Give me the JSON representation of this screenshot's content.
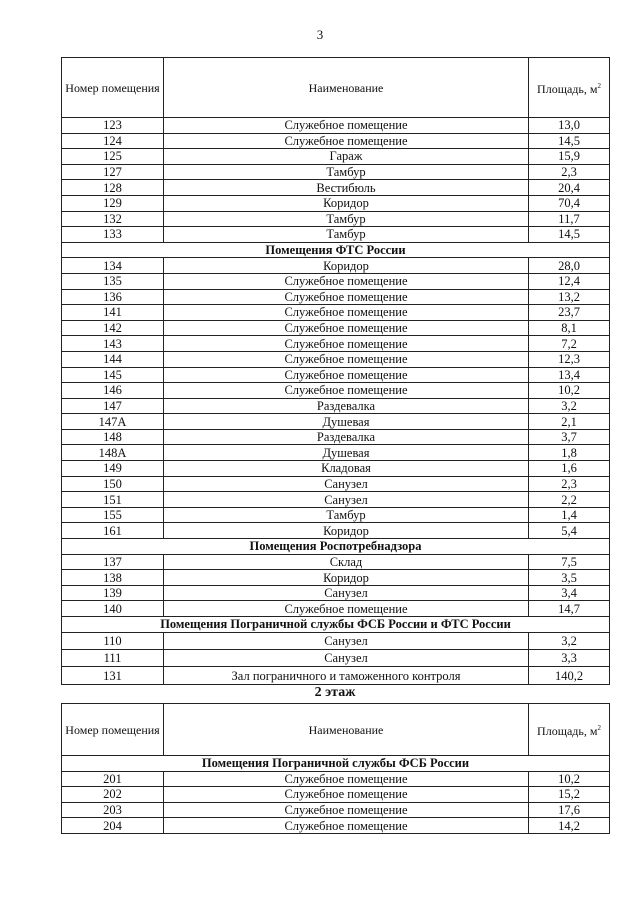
{
  "page_number": "3",
  "header": {
    "number": "Номер помещения",
    "name": "Наименование",
    "area": "Площадь, м",
    "area_sup": "2"
  },
  "table1": [
    {
      "n": "123",
      "name": "Служебное помещение",
      "a": "13,0"
    },
    {
      "n": "124",
      "name": "Служебное помещение",
      "a": "14,5"
    },
    {
      "n": "125",
      "name": "Гараж",
      "a": "15,9"
    },
    {
      "n": "127",
      "name": "Тамбур",
      "a": "2,3"
    },
    {
      "n": "128",
      "name": "Вестибюль",
      "a": "20,4"
    },
    {
      "n": "129",
      "name": "Коридор",
      "a": "70,4"
    },
    {
      "n": "132",
      "name": "Тамбур",
      "a": "11,7"
    },
    {
      "n": "133",
      "name": "Тамбур",
      "a": "14,5"
    },
    {
      "section": "Помещения ФТС России"
    },
    {
      "n": "134",
      "name": "Коридор",
      "a": "28,0"
    },
    {
      "n": "135",
      "name": "Служебное помещение",
      "a": "12,4"
    },
    {
      "n": "136",
      "name": "Служебное помещение",
      "a": "13,2"
    },
    {
      "n": "141",
      "name": "Служебное помещение",
      "a": "23,7"
    },
    {
      "n": "142",
      "name": "Служебное помещение",
      "a": "8,1"
    },
    {
      "n": "143",
      "name": "Служебное помещение",
      "a": "7,2"
    },
    {
      "n": "144",
      "name": "Служебное помещение",
      "a": "12,3"
    },
    {
      "n": "145",
      "name": "Служебное помещение",
      "a": "13,4"
    },
    {
      "n": "146",
      "name": "Служебное помещение",
      "a": "10,2"
    },
    {
      "n": "147",
      "name": "Раздевалка",
      "a": "3,2"
    },
    {
      "n": "147А",
      "name": "Душевая",
      "a": "2,1"
    },
    {
      "n": "148",
      "name": "Раздевалка",
      "a": "3,7"
    },
    {
      "n": "148А",
      "name": "Душевая",
      "a": "1,8"
    },
    {
      "n": "149",
      "name": "Кладовая",
      "a": "1,6"
    },
    {
      "n": "150",
      "name": "Санузел",
      "a": "2,3"
    },
    {
      "n": "151",
      "name": "Санузел",
      "a": "2,2"
    },
    {
      "n": "155",
      "name": "Тамбур",
      "a": "1,4"
    },
    {
      "n": "161",
      "name": "Коридор",
      "a": "5,4"
    },
    {
      "section": "Помещения Роспотребнадзора"
    },
    {
      "n": "137",
      "name": "Склад",
      "a": "7,5"
    },
    {
      "n": "138",
      "name": "Коридор",
      "a": "3,5"
    },
    {
      "n": "139",
      "name": "Санузел",
      "a": "3,4"
    },
    {
      "n": "140",
      "name": "Служебное помещение",
      "a": "14,7"
    },
    {
      "section": "Помещения Пограничной службы ФСБ России и ФТС России"
    },
    {
      "n": "110",
      "name": "Санузел",
      "a": "3,2",
      "big": true
    },
    {
      "n": "111",
      "name": "Санузел",
      "a": "3,3",
      "big": true
    },
    {
      "n": "131",
      "name": "Зал пограничного и таможенного контроля",
      "a": "140,2",
      "big": true
    }
  ],
  "floor2_title": "2 этаж",
  "table2": [
    {
      "section": "Помещения Пограничной службы ФСБ России"
    },
    {
      "n": "201",
      "name": "Служебное помещение",
      "a": "10,2"
    },
    {
      "n": "202",
      "name": "Служебное помещение",
      "a": "15,2"
    },
    {
      "n": "203",
      "name": "Служебное помещение",
      "a": "17,6"
    },
    {
      "n": "204",
      "name": "Служебное помещение",
      "a": "14,2"
    }
  ]
}
